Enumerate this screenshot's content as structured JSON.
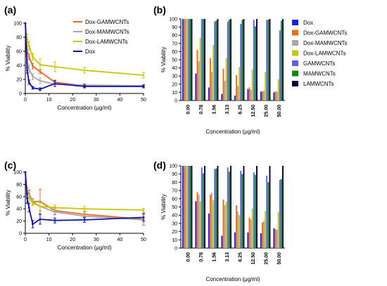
{
  "chart_data": [
    {
      "panel": "(a)",
      "type": "line",
      "ylabel": "% Viability",
      "xlabel": "Concentration (μg/ml)",
      "xlim": [
        0,
        50
      ],
      "ylim": [
        0,
        100
      ],
      "xticks": [
        0,
        10,
        20,
        30,
        40,
        50
      ],
      "yticks": [
        0,
        20,
        40,
        60,
        80,
        100
      ],
      "legend_position": "top-right",
      "x": [
        0,
        0.78,
        1.56,
        3.13,
        6.25,
        12.5,
        25,
        50
      ],
      "series": [
        {
          "name": "Dox-GAMWCNTs",
          "color": "#f26522",
          "values": [
            100,
            62,
            52,
            39,
            31,
            16,
            11,
            11
          ],
          "err": [
            0,
            5,
            4,
            4,
            3,
            3,
            2,
            2
          ]
        },
        {
          "name": "Dox-MAMWCNTs",
          "color": "#a6a6a6",
          "values": [
            100,
            48,
            35,
            24,
            18,
            13,
            12,
            11
          ],
          "err": [
            0,
            5,
            5,
            4,
            4,
            3,
            2,
            2
          ]
        },
        {
          "name": "Dox-LAMWCNTs",
          "color": "#c8c800",
          "values": [
            100,
            77,
            68,
            52,
            41,
            38,
            33,
            26
          ],
          "err": [
            0,
            7,
            6,
            5,
            8,
            7,
            4,
            4
          ]
        },
        {
          "name": "Dox",
          "color": "#1010c0",
          "values": [
            100,
            33,
            16,
            8,
            6,
            14,
            10,
            10
          ],
          "err": [
            0,
            4,
            3,
            2,
            2,
            4,
            2,
            2
          ]
        }
      ]
    },
    {
      "panel": "(b)",
      "type": "bar",
      "ylabel": "% Viability",
      "xlabel": "Concentration (μg/ml)",
      "ylim": [
        0,
        100
      ],
      "yticks": [
        0,
        10,
        20,
        30,
        40,
        50,
        60,
        70,
        80,
        90,
        100
      ],
      "legend_position": "right",
      "categories": [
        "0.00",
        "0.78",
        "1.56",
        "3.13",
        "6.25",
        "12.50",
        "25.00",
        "50.00"
      ],
      "series": [
        {
          "name": "Dox",
          "color": "#1a1aff",
          "values": [
            100,
            33,
            16,
            8,
            6,
            14,
            11,
            10
          ]
        },
        {
          "name": "Dox-GAMWCNTs",
          "color": "#ff6600",
          "values": [
            100,
            62,
            52,
            39,
            31,
            16,
            11,
            11
          ]
        },
        {
          "name": "Dox-MAMWCNTs",
          "color": "#a6a6a6",
          "values": [
            100,
            48,
            35,
            24,
            18,
            13,
            12,
            11
          ]
        },
        {
          "name": "Dox-LAMWCNTs",
          "color": "#c8c800",
          "values": [
            100,
            77,
            68,
            52,
            41,
            38,
            35,
            26
          ]
        },
        {
          "name": "GAMWCNTs",
          "color": "#5b5bff",
          "values": [
            100,
            100,
            97,
            97,
            94,
            99,
            99,
            86
          ]
        },
        {
          "name": "MAMWCNTs",
          "color": "#0c8a0c",
          "values": [
            100,
            100,
            98,
            99,
            99,
            91,
            99,
            98
          ]
        },
        {
          "name": "LAMWCNTs",
          "color": "#000040",
          "values": [
            100,
            100,
            100,
            100,
            100,
            100,
            100,
            100
          ]
        }
      ]
    },
    {
      "panel": "(c)",
      "type": "line",
      "ylabel": "% Viability",
      "xlabel": "Concentration (μg/ml)",
      "xlim": [
        0,
        50
      ],
      "ylim": [
        0,
        100
      ],
      "xticks": [
        0,
        10,
        20,
        30,
        40,
        50
      ],
      "yticks": [
        0,
        20,
        40,
        60,
        80,
        100
      ],
      "x": [
        0,
        0.78,
        1.56,
        3.13,
        6.25,
        12.5,
        25,
        50
      ],
      "series": [
        {
          "name": "Dox-GAMWCNTs",
          "color": "#f26522",
          "values": [
            100,
            68,
            65,
            52,
            52,
            37,
            31,
            23
          ],
          "err": [
            0,
            6,
            6,
            5,
            20,
            6,
            4,
            10
          ]
        },
        {
          "name": "Dox-MAMWCNTs",
          "color": "#a6a6a6",
          "values": [
            100,
            65,
            63,
            52,
            44,
            35,
            28,
            22
          ],
          "err": [
            0,
            6,
            6,
            5,
            8,
            5,
            4,
            4
          ]
        },
        {
          "name": "Dox-LAMWCNTs",
          "color": "#c8c800",
          "values": [
            100,
            57,
            58,
            50,
            44,
            42,
            40,
            38
          ],
          "err": [
            0,
            6,
            6,
            5,
            6,
            4,
            4,
            3
          ]
        },
        {
          "name": "Dox",
          "color": "#1010c0",
          "values": [
            100,
            57,
            42,
            15,
            23,
            21,
            22,
            26
          ],
          "err": [
            0,
            8,
            7,
            6,
            8,
            4,
            4,
            6
          ]
        }
      ]
    },
    {
      "panel": "(d)",
      "type": "bar",
      "ylabel": "% Viability",
      "xlabel": "Concentration (μg/ml)",
      "ylim": [
        0,
        100
      ],
      "yticks": [
        0,
        10,
        20,
        30,
        40,
        50,
        60,
        70,
        80,
        90,
        100
      ],
      "categories": [
        "0.00",
        "0.78",
        "1.56",
        "3.13",
        "6.25",
        "12.50",
        "25.00",
        "50.00"
      ],
      "series": [
        {
          "name": "Dox",
          "color": "#1a1aff",
          "values": [
            100,
            57,
            42,
            15,
            19,
            19,
            18,
            24
          ]
        },
        {
          "name": "Dox-GAMWCNTs",
          "color": "#ff6600",
          "values": [
            100,
            68,
            65,
            59,
            52,
            37,
            31,
            23
          ]
        },
        {
          "name": "Dox-MAMWCNTs",
          "color": "#a6a6a6",
          "values": [
            100,
            65,
            67,
            52,
            44,
            35,
            33,
            22
          ]
        },
        {
          "name": "Dox-LAMWCNTs",
          "color": "#c8c800",
          "values": [
            100,
            57,
            58,
            56,
            40,
            48,
            45,
            44
          ]
        },
        {
          "name": "GAMWCNTs",
          "color": "#5b5bff",
          "values": [
            100,
            98,
            96,
            98,
            94,
            92,
            88,
            83
          ]
        },
        {
          "name": "MAMWCNTs",
          "color": "#0c8a0c",
          "values": [
            100,
            91,
            97,
            93,
            90,
            89,
            80,
            84
          ]
        },
        {
          "name": "LAMWCNTs",
          "color": "#000040",
          "values": [
            100,
            100,
            100,
            100,
            100,
            100,
            100,
            100
          ]
        }
      ]
    }
  ]
}
